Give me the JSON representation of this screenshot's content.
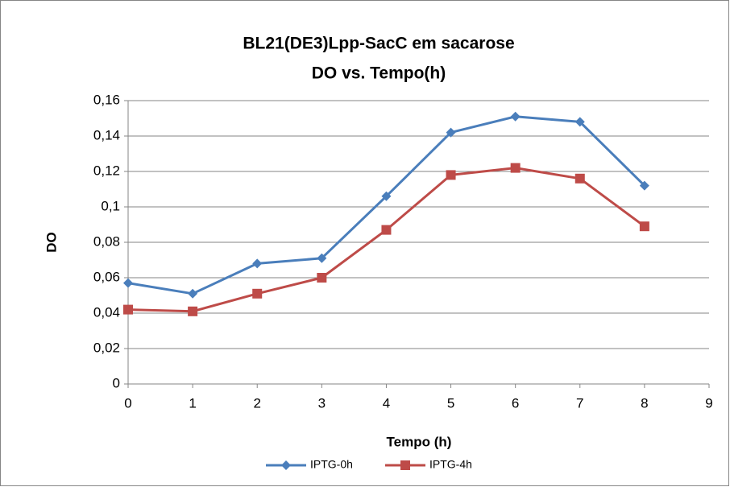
{
  "chart_data": {
    "type": "line",
    "title": [
      "BL21(DE3)Lpp-SacC em sacarose",
      "DO vs. Tempo(h)"
    ],
    "x_label": "Tempo (h)",
    "y_label": "DO",
    "x": [
      0,
      1,
      2,
      3,
      4,
      5,
      6,
      7,
      8
    ],
    "series": [
      {
        "name": "IPTG-0h",
        "color": "#4a7ebb",
        "marker": "diamond",
        "values": [
          0.057,
          0.051,
          0.068,
          0.071,
          0.106,
          0.142,
          0.151,
          0.148,
          0.112
        ]
      },
      {
        "name": "IPTG-4h",
        "color": "#be4b48",
        "marker": "square",
        "values": [
          0.042,
          0.041,
          0.051,
          0.06,
          0.087,
          0.118,
          0.122,
          0.116,
          0.089
        ]
      }
    ],
    "xlim": [
      0,
      9
    ],
    "xticks": [
      0,
      1,
      2,
      3,
      4,
      5,
      6,
      7,
      8,
      9
    ],
    "ylim": [
      0,
      0.16
    ],
    "yticks": [
      0,
      {
        "value": 0.02,
        "label": "0,02"
      },
      {
        "value": 0.04,
        "label": "0,04"
      },
      {
        "value": 0.06,
        "label": "0,06"
      },
      {
        "value": 0.08,
        "label": "0,08"
      },
      {
        "value": 0.1,
        "label": "0,1"
      },
      {
        "value": 0.12,
        "label": "0,12"
      },
      {
        "value": 0.14,
        "label": "0,14"
      },
      {
        "value": 0.16,
        "label": "0,16"
      }
    ],
    "grid": true,
    "legend": "bottom"
  }
}
